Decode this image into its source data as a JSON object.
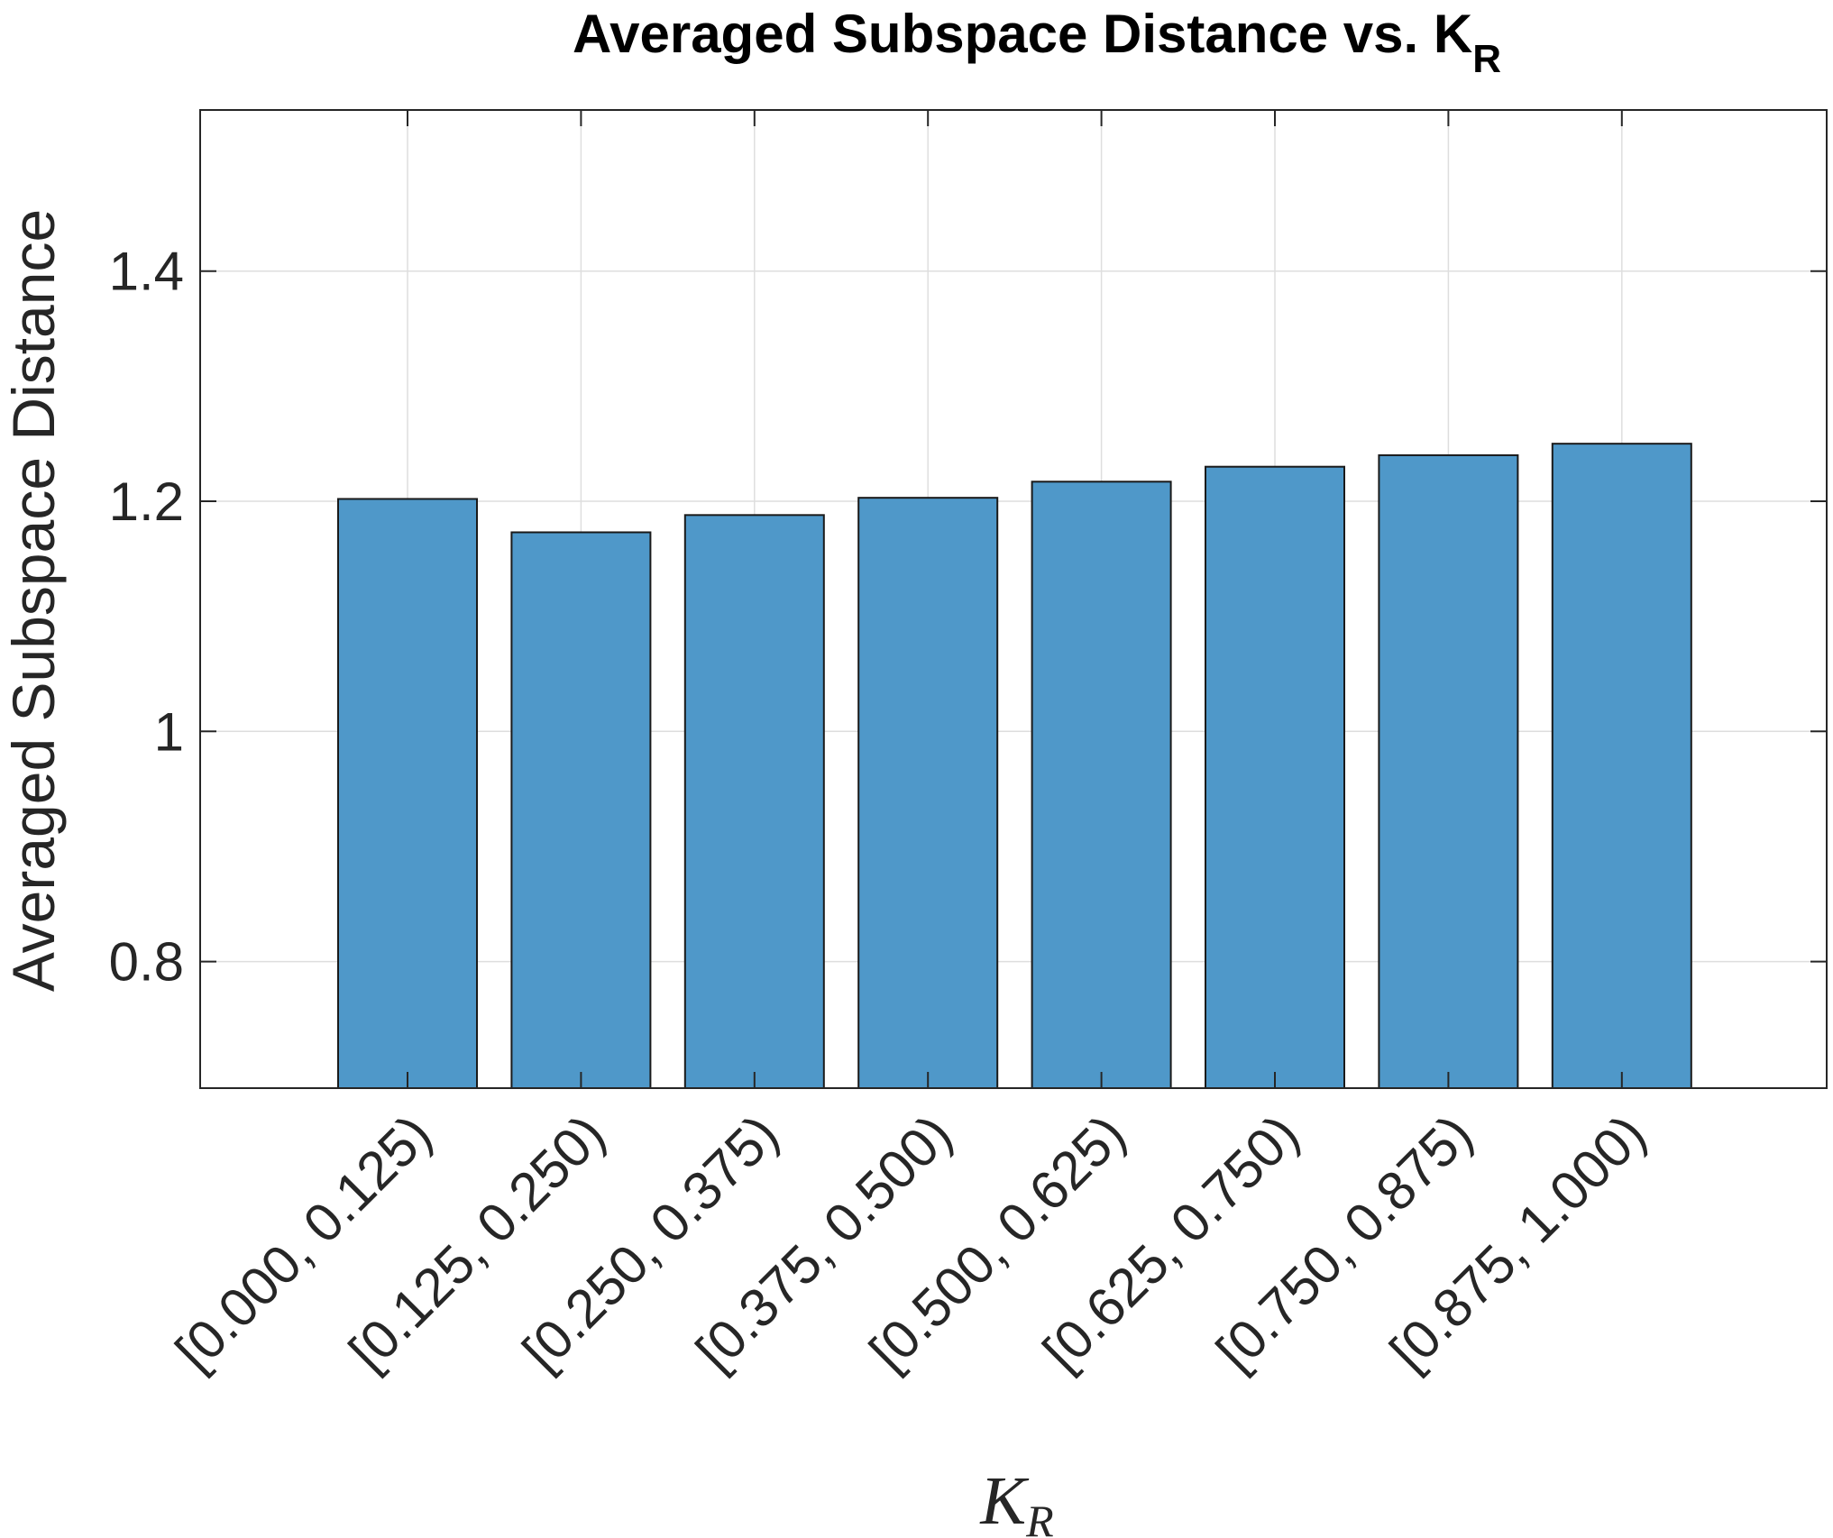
{
  "chart_data": {
    "type": "bar",
    "title": "Averaged Subspace Distance vs. K",
    "title_subscript": "R",
    "xlabel": "K",
    "xlabel_subscript": "R",
    "ylabel": "Averaged Subspace Distance",
    "categories": [
      "[0.000, 0.125)",
      "[0.125, 0.250)",
      "[0.250, 0.375)",
      "[0.375, 0.500)",
      "[0.500, 0.625)",
      "[0.625, 0.750)",
      "[0.750, 0.875)",
      "[0.875, 1.000)"
    ],
    "values": [
      1.202,
      1.173,
      1.188,
      1.203,
      1.217,
      1.23,
      1.24,
      1.25
    ],
    "ylim": [
      0.69,
      1.54
    ],
    "yticks": [
      0.8,
      1,
      1.2,
      1.4
    ],
    "ytick_labels": [
      "0.8",
      "1",
      "1.2",
      "1.4"
    ],
    "grid": true,
    "bar_color": "#4f98c9",
    "bar_edge_color": "#1a1a1a",
    "grid_color": "#dedede",
    "axis_color": "#262626"
  }
}
